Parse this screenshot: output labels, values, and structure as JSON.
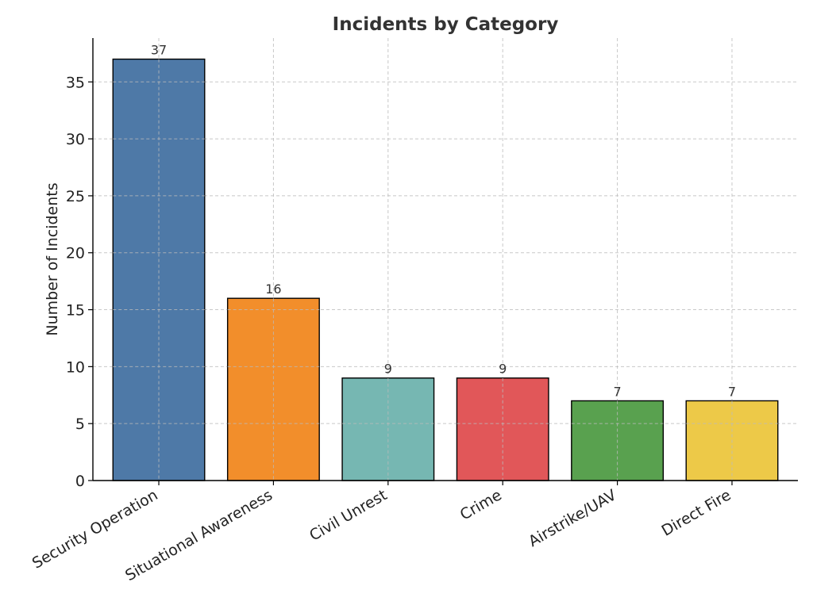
{
  "chart_data": {
    "type": "bar",
    "title": "Incidents by Category",
    "xlabel": "",
    "ylabel": "Number of Incidents",
    "categories": [
      "Security Operation",
      "Situational Awareness",
      "Civil Unrest",
      "Crime",
      "Airstrike/UAV",
      "Direct Fire"
    ],
    "values": [
      37,
      16,
      9,
      9,
      7,
      7
    ],
    "data_labels": [
      "37",
      "16",
      "9",
      "9",
      "7",
      "7"
    ],
    "colors": [
      "#4e79a7",
      "#f28e2b",
      "#76b7b2",
      "#e15759",
      "#59a14f",
      "#edc948"
    ],
    "ylim": [
      0,
      38.85
    ],
    "yticks": [
      0,
      5,
      10,
      15,
      20,
      25,
      30,
      35
    ],
    "grid": true,
    "legend": "none"
  }
}
